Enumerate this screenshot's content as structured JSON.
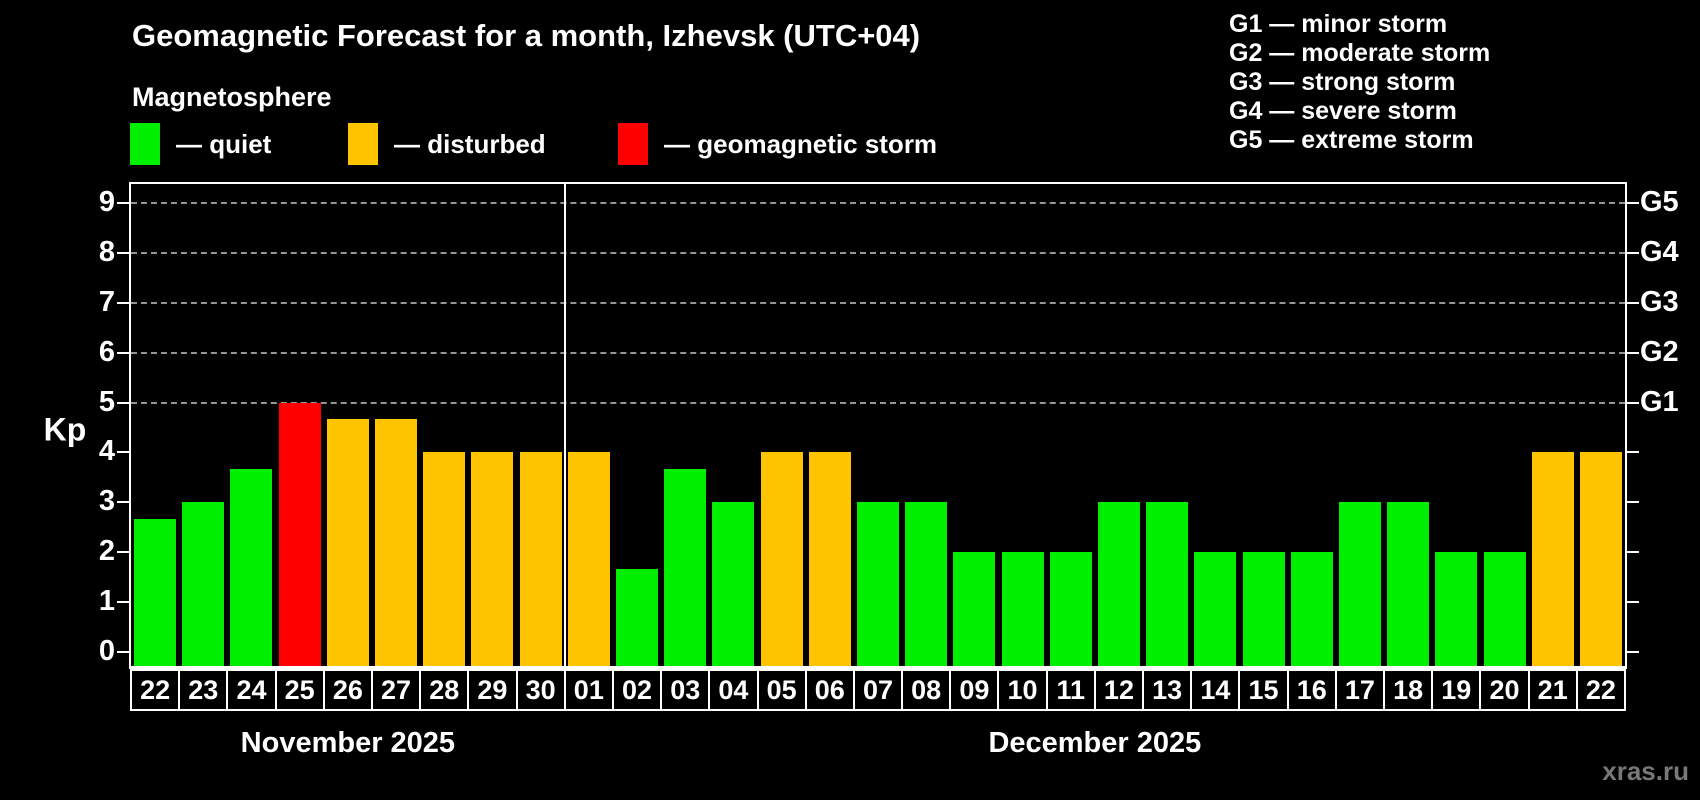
{
  "title": "Geomagnetic Forecast for a month, Izhevsk (UTC+04)",
  "subtitle": "Magnetosphere",
  "legend": {
    "quiet": {
      "label": "— quiet",
      "color": "#00ee00"
    },
    "disturbed": {
      "label": "— disturbed",
      "color": "#ffc400"
    },
    "storm": {
      "label": "— geomagnetic storm",
      "color": "#ff0000"
    }
  },
  "g_scale_legend": [
    {
      "label": "G1 — minor storm"
    },
    {
      "label": "G2 — moderate storm"
    },
    {
      "label": "G3 — strong storm"
    },
    {
      "label": "G4 — severe storm"
    },
    {
      "label": "G5 — extreme storm"
    }
  ],
  "watermark": "xras.ru",
  "chart_data": {
    "type": "bar",
    "title": "Geomagnetic Forecast for a month, Izhevsk (UTC+04)",
    "ylabel": "Kp",
    "ylim": [
      0,
      9.6
    ],
    "grid": "dashed horizontal at Kp 5-9",
    "gridlines": [
      5,
      6,
      7,
      8,
      9
    ],
    "y_ticks": [
      0,
      1,
      2,
      3,
      4,
      5,
      6,
      7,
      8,
      9
    ],
    "right_axis_labels": [
      {
        "kp": 5,
        "label": "G1"
      },
      {
        "kp": 6,
        "label": "G2"
      },
      {
        "kp": 7,
        "label": "G3"
      },
      {
        "kp": 8,
        "label": "G4"
      },
      {
        "kp": 9,
        "label": "G5"
      }
    ],
    "groups": [
      {
        "label": "November 2025",
        "slots": 9
      },
      {
        "label": "December 2025",
        "slots": 22
      }
    ],
    "status_colors": {
      "quiet": "#00ee00",
      "disturbed": "#ffc400",
      "storm": "#ff0000"
    },
    "bars": [
      {
        "day": "22",
        "value": 2.67,
        "status": "quiet"
      },
      {
        "day": "23",
        "value": 3,
        "status": "quiet"
      },
      {
        "day": "24",
        "value": 3.67,
        "status": "quiet"
      },
      {
        "day": "25",
        "value": 5,
        "status": "storm"
      },
      {
        "day": "26",
        "value": 4.67,
        "status": "disturbed"
      },
      {
        "day": "27",
        "value": 4.67,
        "status": "disturbed"
      },
      {
        "day": "28",
        "value": 4,
        "status": "disturbed"
      },
      {
        "day": "29",
        "value": 4,
        "status": "disturbed"
      },
      {
        "day": "30",
        "value": 4,
        "status": "disturbed"
      },
      {
        "day": "01",
        "value": 4,
        "status": "disturbed"
      },
      {
        "day": "02",
        "value": 1.67,
        "status": "quiet"
      },
      {
        "day": "03",
        "value": 3.67,
        "status": "quiet"
      },
      {
        "day": "04",
        "value": 3,
        "status": "quiet"
      },
      {
        "day": "05",
        "value": 4,
        "status": "disturbed"
      },
      {
        "day": "06",
        "value": 4,
        "status": "disturbed"
      },
      {
        "day": "07",
        "value": 3,
        "status": "quiet"
      },
      {
        "day": "08",
        "value": 3,
        "status": "quiet"
      },
      {
        "day": "09",
        "value": 2,
        "status": "quiet"
      },
      {
        "day": "10",
        "value": 2,
        "status": "quiet"
      },
      {
        "day": "11",
        "value": 2,
        "status": "quiet"
      },
      {
        "day": "12",
        "value": 3,
        "status": "quiet"
      },
      {
        "day": "13",
        "value": 3,
        "status": "quiet"
      },
      {
        "day": "14",
        "value": 2,
        "status": "quiet"
      },
      {
        "day": "15",
        "value": 2,
        "status": "quiet"
      },
      {
        "day": "16",
        "value": 2,
        "status": "quiet"
      },
      {
        "day": "17",
        "value": 3,
        "status": "quiet"
      },
      {
        "day": "18",
        "value": 3,
        "status": "quiet"
      },
      {
        "day": "19",
        "value": 2,
        "status": "quiet"
      },
      {
        "day": "20",
        "value": 2,
        "status": "quiet"
      },
      {
        "day": "21",
        "value": 4,
        "status": "disturbed"
      },
      {
        "day": "22",
        "value": 4,
        "status": "disturbed"
      }
    ]
  }
}
